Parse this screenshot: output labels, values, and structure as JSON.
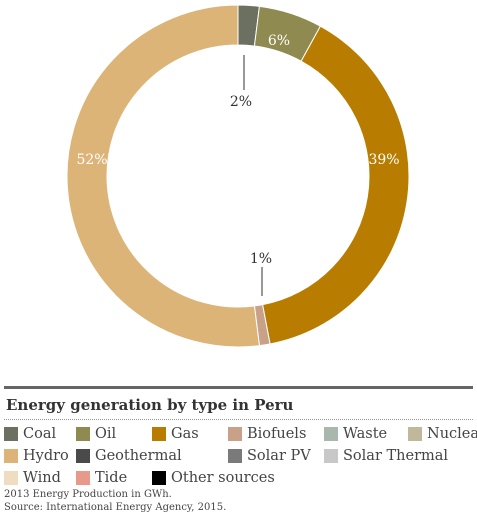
{
  "chart_data": {
    "type": "pie",
    "title": "Energy generation by type in Peru",
    "slices": [
      {
        "name": "Coal",
        "value": 2,
        "label": "2%",
        "color": "#6b7060"
      },
      {
        "name": "Oil",
        "value": 6,
        "label": "6%",
        "color": "#8f8a50"
      },
      {
        "name": "Gas",
        "value": 39,
        "label": "39%",
        "color": "#b87d00"
      },
      {
        "name": "Biofuels",
        "value": 1,
        "label": "1%",
        "color": "#c9a088"
      },
      {
        "name": "Hydro",
        "value": 52,
        "label": "52%",
        "color": "#dcb478"
      }
    ],
    "legend_position": "bottom"
  },
  "legend": [
    {
      "label": "Coal",
      "color": "#6b7060"
    },
    {
      "label": "Oil",
      "color": "#8f8a50"
    },
    {
      "label": "Gas",
      "color": "#b87d00"
    },
    {
      "label": "Biofuels",
      "color": "#c9a088"
    },
    {
      "label": "Waste",
      "color": "#a9b8ad"
    },
    {
      "label": "Nuclear",
      "color": "#c0b89a"
    },
    {
      "label": "Hydro",
      "color": "#dcb478"
    },
    {
      "label": "Geothermal",
      "color": "#4a4a4a"
    },
    {
      "label": "Solar PV",
      "color": "#7a7a7a"
    },
    {
      "label": "Solar Thermal",
      "color": "#c8c8c8"
    },
    {
      "label": "Wind",
      "color": "#f0dcc0"
    },
    {
      "label": "Tide",
      "color": "#e89a8a"
    },
    {
      "label": "Other sources",
      "color": "#000000"
    }
  ],
  "notes": {
    "line1": "2013 Energy Production in GWh.",
    "line2": "Source: International Energy Agency, 2015."
  }
}
